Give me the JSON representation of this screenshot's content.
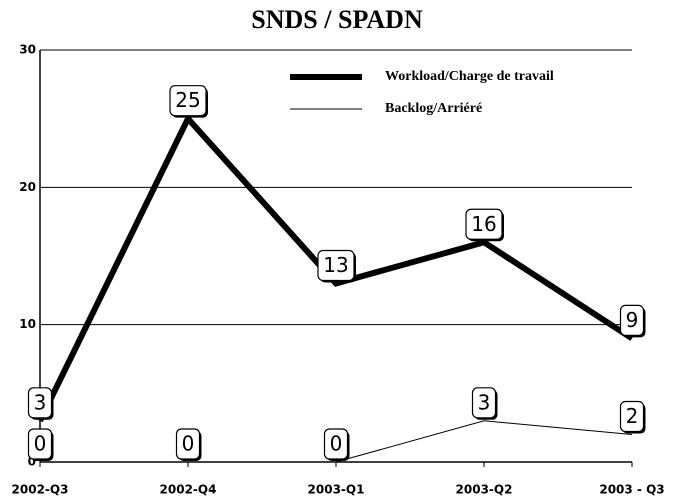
{
  "chart_data": {
    "type": "line",
    "title": "SNDS / SPADN",
    "categories": [
      "2002-Q3",
      "2002-Q4",
      "2003-Q1",
      "2003-Q2",
      "2003 - Q3"
    ],
    "series": [
      {
        "name": "Workload/Charge de travail",
        "color": "#000000",
        "values": [
          3,
          25,
          13,
          16,
          9
        ]
      },
      {
        "name": "Backlog/Arriéré",
        "color": "#000000",
        "values": [
          0,
          0,
          0,
          3,
          2
        ]
      }
    ],
    "ylim": [
      0,
      30
    ],
    "yticks": [
      0,
      10,
      20,
      30
    ],
    "grid": true,
    "legend": "upper right"
  }
}
